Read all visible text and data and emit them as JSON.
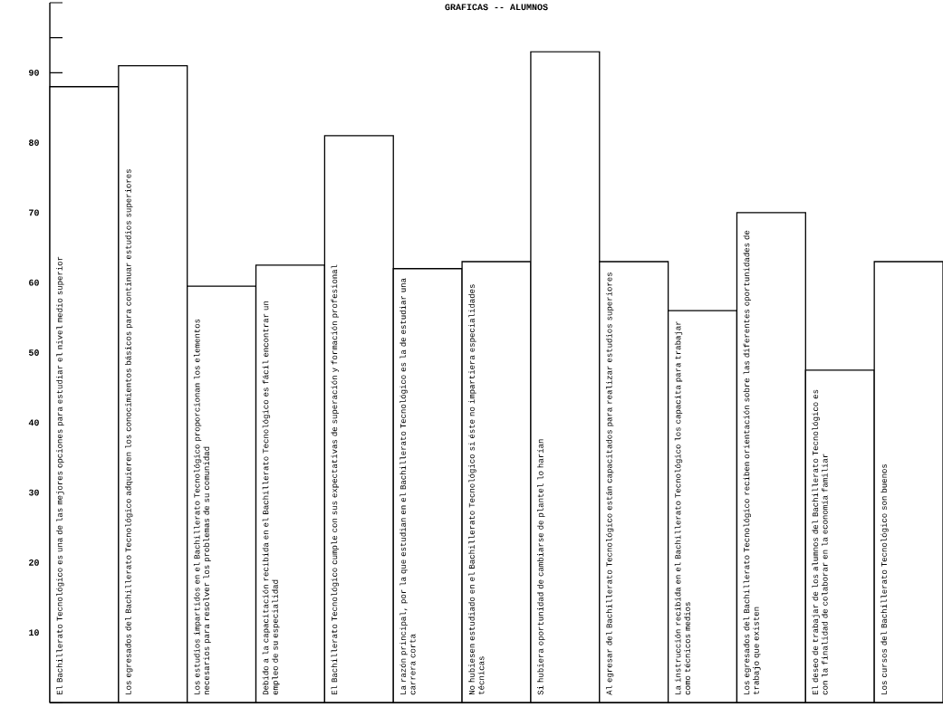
{
  "chart_data": {
    "type": "bar",
    "title": "GRAFICAS -- ALUMNOS",
    "categories": [
      "El Bachillerato Tecnológico es una de las mejores opciones para estudiar el nivel medio superior",
      "Los egresados del Bachillerato Tecnológico adquieren los conocimientos básicos para continuar estudios superiores",
      "Los estudios impartidos en el Bachillerato Tecnológico proporcionan los elementos necesarios para resolver los problemas de su comunidad",
      "Debido a la capacitación recibida en el Bachillerato Tecnológico es fácil encontrar un empleo de su especialidad",
      "El Bachillerato Tecnológico cumple con sus expectativas de superación y formación profesional",
      "La razón principal, por la que estudian en el Bachillerato Tecnológico es la de estudiar una carrera corta",
      "No hubiesen estudiado en el Bachillerato Tecnológico si éste no impartiera especialidades técnicas",
      "Si hubiera oportunidad de cambiarse de plantel lo harían",
      "Al egresar del Bachillerato Tecnológico están capacitados para realizar estudios superiores",
      "La instrucción recibida en el Bachillerato Tecnológico los capacita para trabajar como técnicos medios",
      "Los egresados del Bachillerato Tecnológico reciben orientación sobre las diferentes oportunidades de trabajo que existen",
      "El deseo de trabajar de los alumnos del Bachillerato Tecnológico es con la finalidad de colaborar en la economía familiar",
      "Los cursos del Bachillerato Tecnológico son buenos"
    ],
    "values": [
      88,
      91,
      59.5,
      62.5,
      81,
      62,
      63,
      93,
      63,
      56,
      70,
      47.5,
      63
    ],
    "color": "#ffffff",
    "ylim": [
      0,
      100
    ],
    "yticks": [
      {
        "value": 0,
        "label": null
      },
      {
        "value": 5,
        "label": null
      },
      10,
      {
        "value": 15,
        "label": null
      },
      20,
      {
        "value": 25,
        "label": null
      },
      30,
      {
        "value": 35,
        "label": null
      },
      40,
      {
        "value": 45,
        "label": null
      },
      50,
      {
        "value": 55,
        "label": null
      },
      60,
      {
        "value": 65,
        "label": null
      },
      70,
      {
        "value": 75,
        "label": null
      },
      80,
      {
        "value": 85,
        "label": null
      },
      90,
      {
        "value": 95,
        "label": null
      },
      {
        "value": 100,
        "label": null
      }
    ]
  }
}
